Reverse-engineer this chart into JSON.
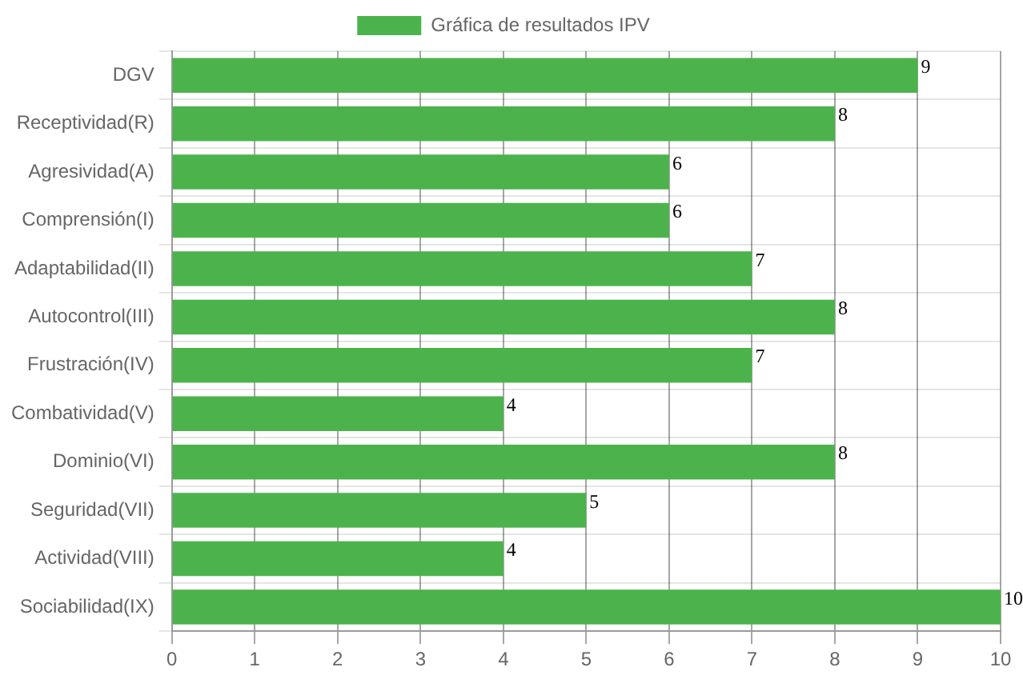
{
  "chart_data": {
    "type": "bar",
    "orientation": "horizontal",
    "categories": [
      "DGV",
      "Receptividad(R)",
      "Agresividad(A)",
      "Comprensión(I)",
      "Adaptabilidad(II)",
      "Autocontrol(III)",
      "Frustración(IV)",
      "Combatividad(V)",
      "Dominio(VI)",
      "Seguridad(VII)",
      "Actividad(VIII)",
      "Sociabilidad(IX)"
    ],
    "series": [
      {
        "name": "Gráfica de resultados IPV",
        "color": "#4cb34c",
        "values": [
          9,
          8,
          6,
          6,
          7,
          8,
          7,
          4,
          8,
          5,
          4,
          10
        ]
      }
    ],
    "xlim": [
      0,
      10
    ],
    "xticks": [
      0,
      1,
      2,
      3,
      4,
      5,
      6,
      7,
      8,
      9,
      10
    ],
    "grid": true,
    "legend": "top",
    "data_labels": true
  }
}
